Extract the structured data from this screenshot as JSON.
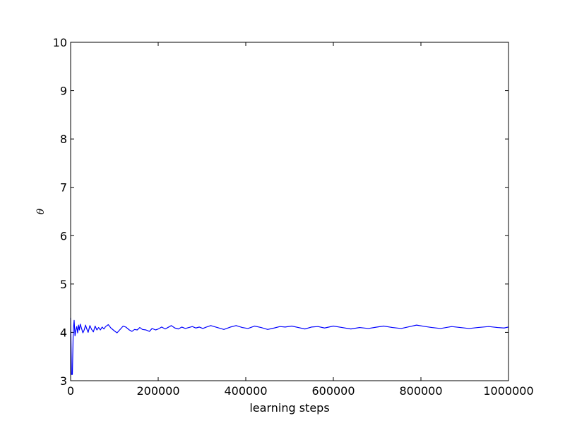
{
  "chart_data": {
    "type": "line",
    "title": "",
    "xlabel": "learning steps",
    "ylabel": "θ",
    "xlim": [
      0,
      1000000
    ],
    "ylim": [
      3,
      10
    ],
    "xticks": [
      {
        "value": 0,
        "label": "0"
      },
      {
        "value": 200000,
        "label": "200000"
      },
      {
        "value": 400000,
        "label": "400000"
      },
      {
        "value": 600000,
        "label": "600000"
      },
      {
        "value": 800000,
        "label": "800000"
      },
      {
        "value": 1000000,
        "label": "1000000"
      }
    ],
    "yticks": [
      {
        "value": 3,
        "label": "3"
      },
      {
        "value": 4,
        "label": "4"
      },
      {
        "value": 5,
        "label": "5"
      },
      {
        "value": 6,
        "label": "6"
      },
      {
        "value": 7,
        "label": "7"
      },
      {
        "value": 8,
        "label": "8"
      },
      {
        "value": 9,
        "label": "9"
      },
      {
        "value": 10,
        "label": "10"
      }
    ],
    "grid": false,
    "legend": "none",
    "series": [
      {
        "color": "#0000ff",
        "x": [
          0,
          2000,
          4000,
          6000,
          8000,
          10000,
          12000,
          14000,
          16000,
          18000,
          20000,
          22000,
          25000,
          28000,
          31000,
          34000,
          37000,
          40000,
          44000,
          48000,
          52000,
          56000,
          60000,
          64000,
          68000,
          72000,
          76000,
          80000,
          86000,
          92000,
          100000,
          106000,
          114000,
          120000,
          126000,
          134000,
          140000,
          146000,
          152000,
          158000,
          164000,
          172000,
          180000,
          186000,
          194000,
          200000,
          208000,
          216000,
          222000,
          230000,
          238000,
          246000,
          254000,
          262000,
          270000,
          278000,
          286000,
          294000,
          302000,
          310000,
          320000,
          335000,
          350000,
          365000,
          378000,
          392000,
          405000,
          420000,
          435000,
          450000,
          465000,
          478000,
          490000,
          505000,
          520000,
          535000,
          550000,
          565000,
          580000,
          600000,
          620000,
          640000,
          660000,
          680000,
          700000,
          715000,
          735000,
          755000,
          775000,
          790000,
          810000,
          825000,
          845000,
          870000,
          890000,
          910000,
          930000,
          955000,
          975000,
          990000,
          1000000
        ],
        "y": [
          4.3,
          3.13,
          3.13,
          4.05,
          4.25,
          3.93,
          4.05,
          4.12,
          3.99,
          4.15,
          4.05,
          4.17,
          4.08,
          3.99,
          4.05,
          4.15,
          4.07,
          4.0,
          4.14,
          4.06,
          4.01,
          4.13,
          4.05,
          4.1,
          4.05,
          4.11,
          4.07,
          4.12,
          4.16,
          4.09,
          4.03,
          3.99,
          4.07,
          4.13,
          4.11,
          4.05,
          4.02,
          4.06,
          4.05,
          4.1,
          4.06,
          4.05,
          4.02,
          4.08,
          4.05,
          4.07,
          4.11,
          4.07,
          4.1,
          4.14,
          4.09,
          4.07,
          4.11,
          4.08,
          4.1,
          4.12,
          4.09,
          4.11,
          4.08,
          4.11,
          4.14,
          4.1,
          4.06,
          4.11,
          4.14,
          4.1,
          4.08,
          4.13,
          4.1,
          4.06,
          4.09,
          4.12,
          4.11,
          4.13,
          4.1,
          4.07,
          4.11,
          4.12,
          4.09,
          4.13,
          4.1,
          4.07,
          4.1,
          4.08,
          4.11,
          4.13,
          4.1,
          4.08,
          4.12,
          4.15,
          4.12,
          4.1,
          4.08,
          4.12,
          4.1,
          4.08,
          4.1,
          4.12,
          4.1,
          4.09,
          4.11
        ]
      }
    ]
  },
  "colors": {
    "line": "#0000ff",
    "axes": "#000000",
    "background": "#ffffff"
  }
}
